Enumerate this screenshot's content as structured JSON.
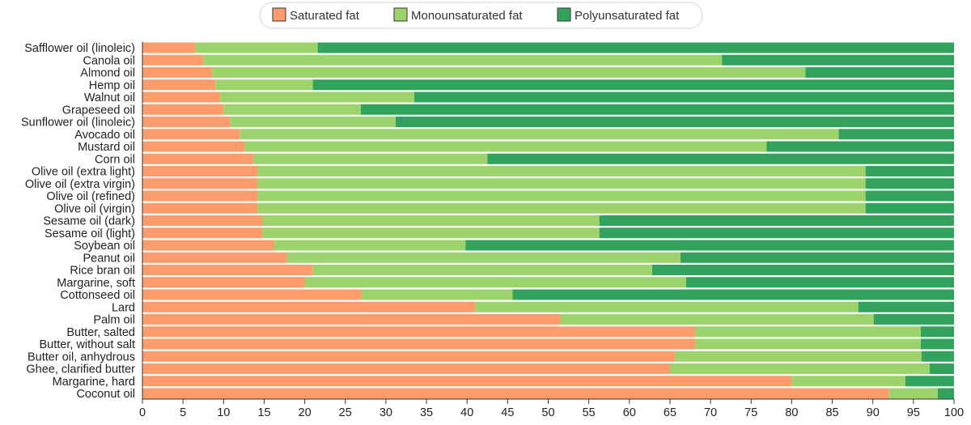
{
  "chart_data": {
    "type": "bar",
    "orientation": "horizontal",
    "stacked": true,
    "title": "",
    "xlabel": "",
    "ylabel": "",
    "xlim": [
      0,
      100
    ],
    "xticks": [
      0,
      5,
      10,
      15,
      20,
      25,
      30,
      35,
      40,
      45,
      50,
      55,
      60,
      65,
      70,
      75,
      80,
      85,
      90,
      95,
      100
    ],
    "grid": false,
    "legend_position": "top-center",
    "categories": [
      "Safflower oil (linoleic)",
      "Canola oil",
      "Almond oil",
      "Hemp oil",
      "Walnut oil",
      "Grapeseed oil",
      "Sunflower oil (linoleic)",
      "Avocado oil",
      "Mustard oil",
      "Corn oil",
      "Olive oil (extra light)",
      "Olive oil (extra virgin)",
      "Olive oil (refined)",
      "Olive oil (virgin)",
      "Sesame oil (dark)",
      "Sesame oil (light)",
      "Soybean oil",
      "Peanut oil",
      "Rice bran oil",
      "Margarine, soft",
      "Cottonseed oil",
      "Lard",
      "Palm oil",
      "Butter, salted",
      "Butter, without salt",
      "Butter oil, anhydrous",
      "Ghee, clarified butter",
      "Margarine, hard",
      "Coconut oil"
    ],
    "series": [
      {
        "name": "Saturated fat",
        "color": "#fc9b6b",
        "values": [
          6.5,
          7.5,
          8.6,
          9,
          9.6,
          10,
          10.8,
          12,
          12.6,
          13.7,
          14.2,
          14.2,
          14.2,
          14.2,
          14.8,
          14.8,
          16.2,
          17.8,
          21,
          20,
          27,
          41,
          51.5,
          68.1,
          68.1,
          65.6,
          65,
          80,
          92
        ]
      },
      {
        "name": "Monounsaturated fat",
        "color": "#9cd46b",
        "values": [
          15.1,
          63.9,
          73.1,
          12,
          23.9,
          16.9,
          20.4,
          73.8,
          64.3,
          28.8,
          74.9,
          74.9,
          74.9,
          74.9,
          41.5,
          41.5,
          23.6,
          48.5,
          41.8,
          47,
          18.6,
          47.2,
          38.6,
          27.8,
          27.8,
          30.4,
          32,
          14,
          6
        ]
      },
      {
        "name": "Polyunsaturated fat",
        "color": "#31a35c",
        "values": [
          78.4,
          28.6,
          18.3,
          79,
          66.5,
          73.1,
          68.8,
          14.2,
          23.1,
          57.5,
          10.9,
          10.9,
          10.9,
          10.9,
          43.7,
          43.7,
          60.2,
          33.7,
          37.2,
          33,
          54.4,
          11.8,
          9.9,
          4.1,
          4.1,
          4,
          3,
          6,
          2
        ]
      }
    ]
  }
}
